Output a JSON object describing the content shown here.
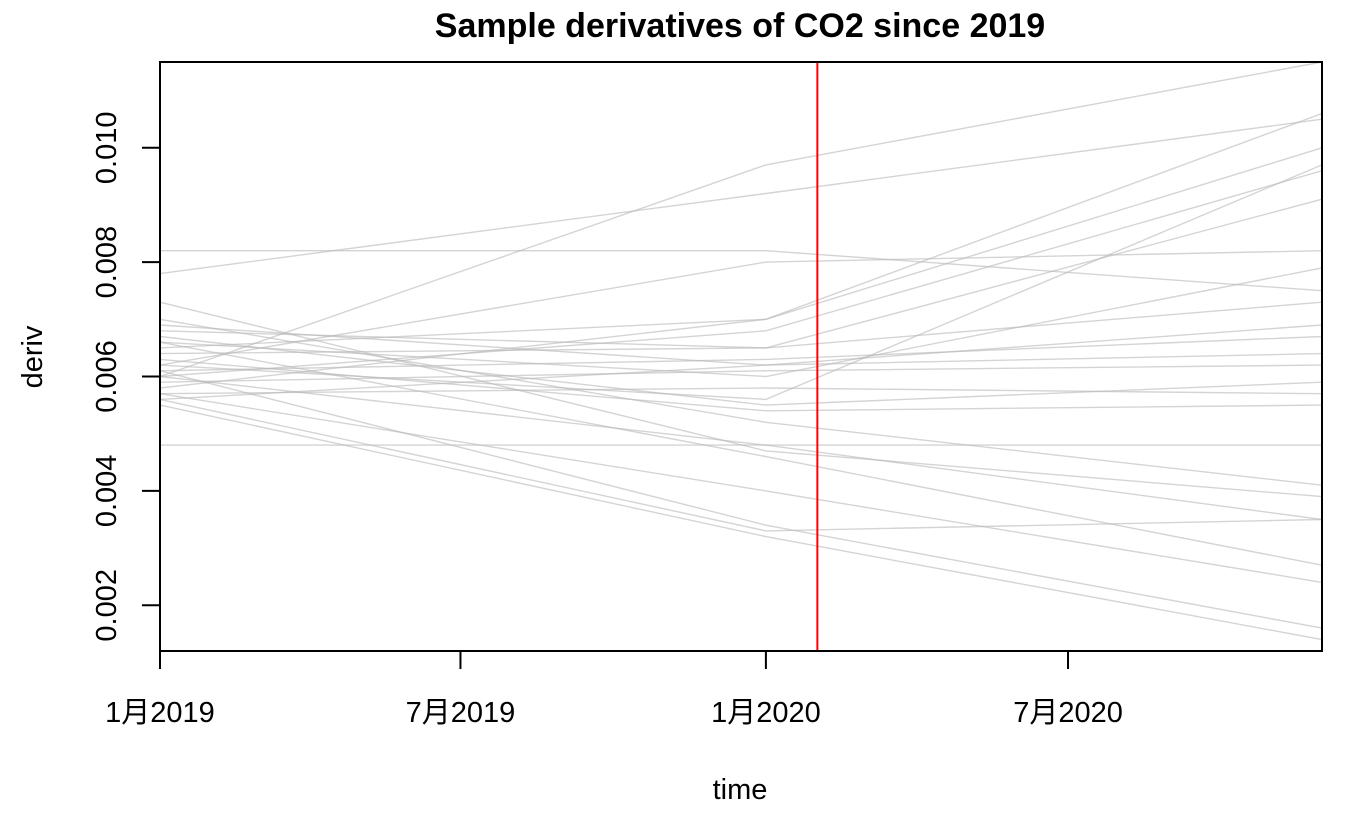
{
  "chart_data": {
    "type": "line",
    "title": "Sample derivatives of CO2 since 2019",
    "xlabel": "time",
    "ylabel": "deriv",
    "x": [
      "2019-01-01",
      "2020-01-01",
      "2020-12-01"
    ],
    "x_ticks": [
      {
        "value": "2019-01-01",
        "label": "1月2019"
      },
      {
        "value": "2019-07-01",
        "label": "7月2019"
      },
      {
        "value": "2020-01-01",
        "label": "1月2020"
      },
      {
        "value": "2020-07-01",
        "label": "7月2020"
      }
    ],
    "xlim": [
      "2019-01-01",
      "2020-12-01"
    ],
    "y_ticks": [
      0.002,
      0.004,
      0.006,
      0.008,
      0.01
    ],
    "y_tick_labels": [
      "0.002",
      "0.004",
      "0.006",
      "0.008",
      "0.010"
    ],
    "ylim": [
      0.0012,
      0.0115
    ],
    "grid": false,
    "vertical_reference_line": {
      "x": "2020-02-01",
      "color": "#ff0000"
    },
    "series_color": "#b8b8b8",
    "series": [
      {
        "values": [
          0.006,
          0.0097,
          0.0115
        ]
      },
      {
        "values": [
          0.0078,
          0.0092,
          0.0105
        ]
      },
      {
        "values": [
          0.0082,
          0.0082,
          0.0075
        ]
      },
      {
        "values": [
          0.0062,
          0.008,
          0.0082
        ]
      },
      {
        "values": [
          0.0058,
          0.007,
          0.0106
        ]
      },
      {
        "values": [
          0.0065,
          0.007,
          0.01
        ]
      },
      {
        "values": [
          0.006,
          0.0068,
          0.0096
        ]
      },
      {
        "values": [
          0.0064,
          0.0065,
          0.0091
        ]
      },
      {
        "values": [
          0.0068,
          0.0065,
          0.0073
        ]
      },
      {
        "values": [
          0.0066,
          0.006,
          0.0079
        ]
      },
      {
        "values": [
          0.0062,
          0.0056,
          0.0097
        ]
      },
      {
        "values": [
          0.0061,
          0.0063,
          0.0067
        ]
      },
      {
        "values": [
          0.0069,
          0.0062,
          0.0064
        ]
      },
      {
        "values": [
          0.0056,
          0.0062,
          0.0069
        ]
      },
      {
        "values": [
          0.0059,
          0.0061,
          0.0062
        ]
      },
      {
        "values": [
          0.0057,
          0.0058,
          0.0057
        ]
      },
      {
        "values": [
          0.0067,
          0.0055,
          0.0059
        ]
      },
      {
        "values": [
          0.0063,
          0.0054,
          0.0055
        ]
      },
      {
        "values": [
          0.0048,
          0.0048,
          0.0048
        ]
      },
      {
        "values": [
          0.007,
          0.0052,
          0.0041
        ]
      },
      {
        "values": [
          0.0073,
          0.0047,
          0.0039
        ]
      },
      {
        "values": [
          0.006,
          0.0048,
          0.0035
        ]
      },
      {
        "values": [
          0.0066,
          0.0046,
          0.0027
        ]
      },
      {
        "values": [
          0.0057,
          0.004,
          0.0024
        ]
      },
      {
        "values": [
          0.0056,
          0.0033,
          0.0035
        ]
      },
      {
        "values": [
          0.0061,
          0.0034,
          0.0016
        ]
      },
      {
        "values": [
          0.0055,
          0.0032,
          0.0014
        ]
      }
    ]
  }
}
